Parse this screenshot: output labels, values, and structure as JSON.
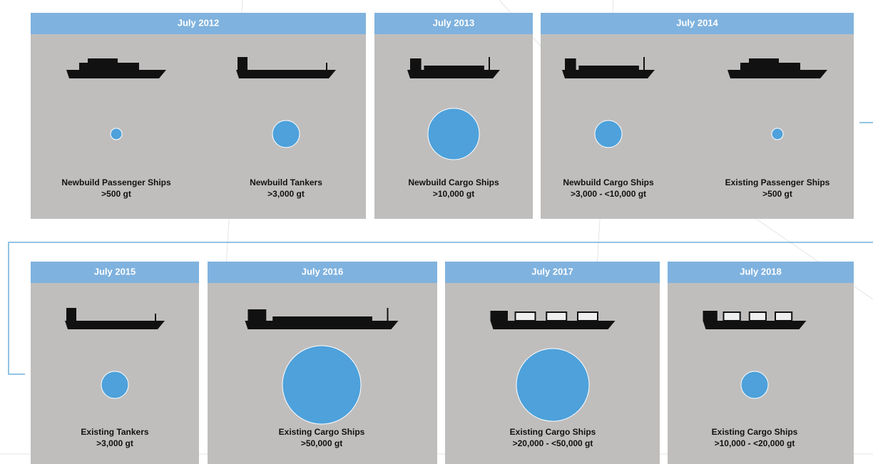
{
  "panels": [
    {
      "title": "July 2012",
      "items": [
        {
          "name": "Newbuild Passenger Ships",
          "threshold": ">500 gt"
        },
        {
          "name": "Newbuild Tankers",
          "threshold": ">3,000 gt"
        }
      ]
    },
    {
      "title": "July 2013",
      "items": [
        {
          "name": "Newbuild Cargo Ships",
          "threshold": ">10,000 gt"
        }
      ]
    },
    {
      "title": "July 2014",
      "items": [
        {
          "name": "Newbuild Cargo Ships",
          "threshold": ">3,000 - <10,000 gt"
        },
        {
          "name": "Existing Passenger Ships",
          "threshold": ">500 gt"
        }
      ]
    },
    {
      "title": "July 2015",
      "items": [
        {
          "name": "Existing Tankers",
          "threshold": ">3,000 gt"
        }
      ]
    },
    {
      "title": "July 2016",
      "items": [
        {
          "name": "Existing Cargo Ships",
          "threshold": ">50,000 gt"
        }
      ]
    },
    {
      "title": "July 2017",
      "items": [
        {
          "name": "Existing Cargo Ships",
          "threshold": ">20,000 - <50,000 gt"
        }
      ]
    },
    {
      "title": "July 2018",
      "items": [
        {
          "name": "Existing Cargo Ships",
          "threshold": ">10,000 - <20,000 gt"
        }
      ]
    }
  ]
}
